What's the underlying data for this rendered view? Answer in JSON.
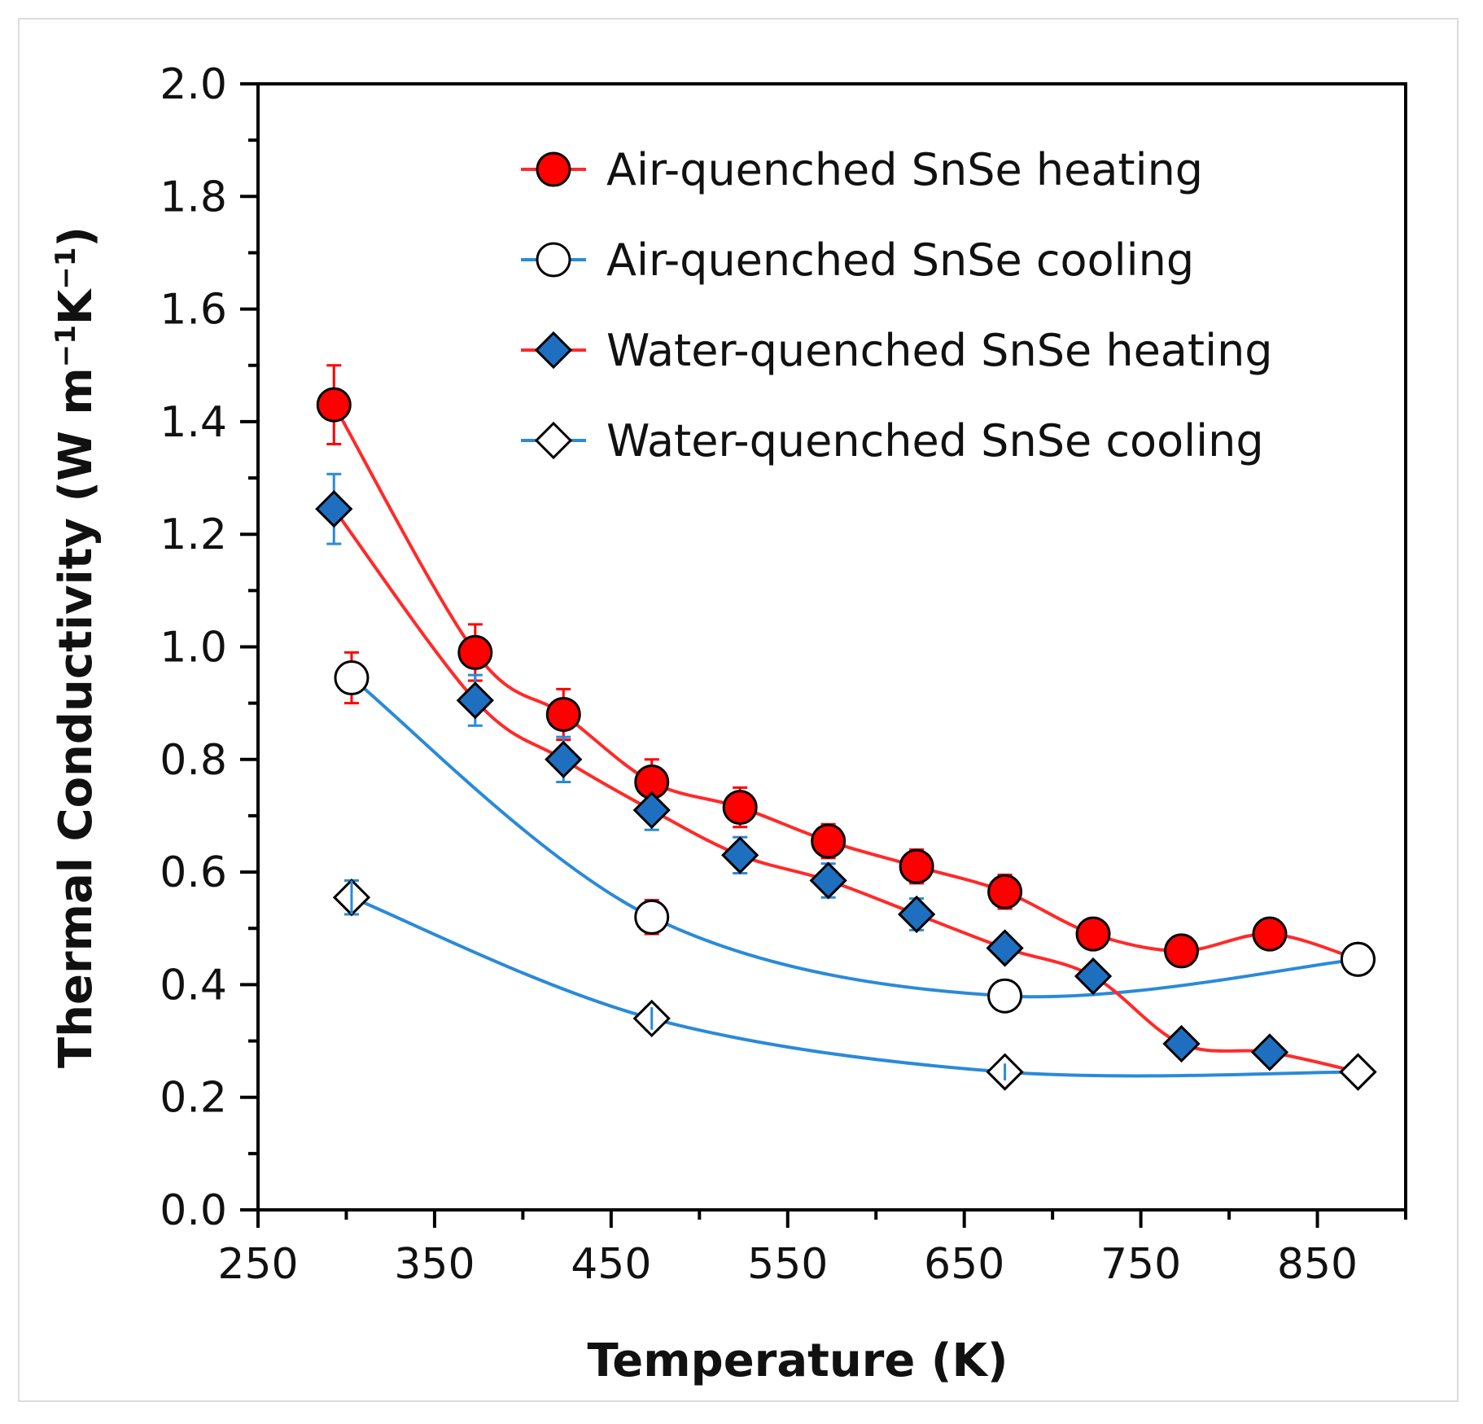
{
  "chart_data": {
    "type": "line",
    "title": "",
    "xlabel": "Temperature (K)",
    "ylabel_main": "Thermal Conductivity (W m",
    "ylabel_sup1": "−1",
    "ylabel_mid": "K",
    "ylabel_sup2": "−1",
    "ylabel_end": ")",
    "xlim": [
      250,
      900
    ],
    "ylim": [
      0.0,
      2.0
    ],
    "x_ticks": [
      250,
      350,
      450,
      550,
      650,
      750,
      850
    ],
    "x_tick_labels": [
      "250",
      "350",
      "450",
      "550",
      "650",
      "750",
      "850"
    ],
    "y_ticks": [
      0.0,
      0.2,
      0.4,
      0.6,
      0.8,
      1.0,
      1.2,
      1.4,
      1.6,
      1.8,
      2.0
    ],
    "y_tick_labels": [
      "0.0",
      "0.2",
      "0.4",
      "0.6",
      "0.8",
      "1.0",
      "1.2",
      "1.4",
      "1.6",
      "1.8",
      "2.0"
    ],
    "legend_position": "top-right",
    "series": [
      {
        "name": "Air-quenched SnSe heating",
        "marker": "circle-filled",
        "marker_color": "#ff0000",
        "line_color": "#ff2a2a",
        "error_color": "#ff0000",
        "x": [
          293,
          373,
          423,
          473,
          523,
          573,
          623,
          673,
          723,
          773,
          823,
          873
        ],
        "y": [
          1.43,
          0.99,
          0.88,
          0.76,
          0.715,
          0.655,
          0.61,
          0.565,
          0.49,
          0.46,
          0.49,
          0.445
        ],
        "err": [
          0.07,
          0.05,
          0.045,
          0.04,
          0.035,
          0.03,
          0.03,
          0.03,
          0.0,
          0.0,
          0.0,
          0.0
        ]
      },
      {
        "name": "Air-quenched SnSe cooling",
        "marker": "circle-open",
        "marker_color": "#ffffff",
        "line_color": "#2a8ad8",
        "error_color": "#ff0000",
        "x": [
          303,
          473,
          673,
          873
        ],
        "y": [
          0.945,
          0.52,
          0.38,
          0.445
        ],
        "err": [
          0.045,
          0.03,
          0.0,
          0.0
        ]
      },
      {
        "name": "Water-quenched SnSe heating",
        "marker": "diamond-filled",
        "marker_color": "#1f6fc0",
        "line_color": "#ff2a2a",
        "error_color": "#2a8ad8",
        "x": [
          293,
          373,
          423,
          473,
          523,
          573,
          623,
          673,
          723,
          773,
          823,
          873
        ],
        "y": [
          1.245,
          0.905,
          0.8,
          0.71,
          0.63,
          0.585,
          0.525,
          0.465,
          0.415,
          0.295,
          0.28,
          0.245
        ],
        "err": [
          0.062,
          0.045,
          0.04,
          0.035,
          0.032,
          0.03,
          0.028,
          0.0,
          0.0,
          0.0,
          0.0,
          0.0
        ]
      },
      {
        "name": "Water-quenched SnSe cooling",
        "marker": "diamond-open",
        "marker_color": "#ffffff",
        "line_color": "#2a8ad8",
        "error_color": "#2a8ad8",
        "x": [
          303,
          473,
          673,
          873
        ],
        "y": [
          0.555,
          0.34,
          0.245,
          0.245
        ],
        "err": [
          0.03,
          0.02,
          0.015,
          0.0
        ]
      }
    ]
  }
}
